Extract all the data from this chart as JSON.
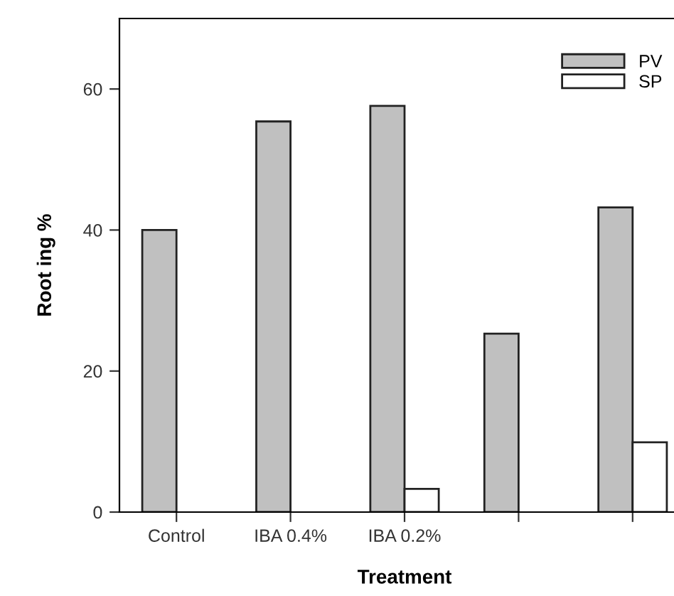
{
  "chart_data": {
    "type": "bar",
    "xlabel": "Treatment",
    "ylabel": "Root ing %",
    "categories": [
      "Control",
      "IBA 0.4%",
      "IBA 0.2%",
      null,
      null
    ],
    "series": [
      {
        "name": "PV",
        "color": "#c0c0c0",
        "values": [
          40,
          55.4,
          57.6,
          25.3,
          43.2
        ]
      },
      {
        "name": "SP",
        "color": "#ffffff",
        "values": [
          null,
          null,
          3.3,
          null,
          9.9
        ]
      }
    ],
    "ylim": [
      0,
      70
    ],
    "yticks": [
      0,
      20,
      40,
      60
    ],
    "grid": false,
    "legend": "top right"
  }
}
